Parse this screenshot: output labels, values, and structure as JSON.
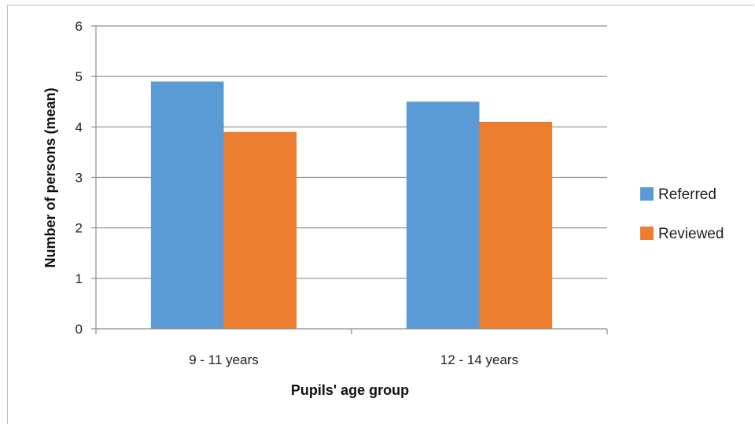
{
  "chart_data": {
    "type": "bar",
    "title": "",
    "xlabel": "Pupils' age group",
    "ylabel": "Number of persons (mean)",
    "categories": [
      "9 - 11 years",
      "12 - 14 years"
    ],
    "series": [
      {
        "name": "Referred",
        "values": [
          4.9,
          4.5
        ],
        "color": "#5B9BD5"
      },
      {
        "name": "Reviewed",
        "values": [
          3.9,
          4.1
        ],
        "color": "#ED7D31"
      }
    ],
    "ylim": [
      0,
      6
    ],
    "yticks": [
      "0",
      "1",
      "2",
      "3",
      "4",
      "5",
      "6"
    ],
    "grid": true,
    "legend_position": "right"
  }
}
